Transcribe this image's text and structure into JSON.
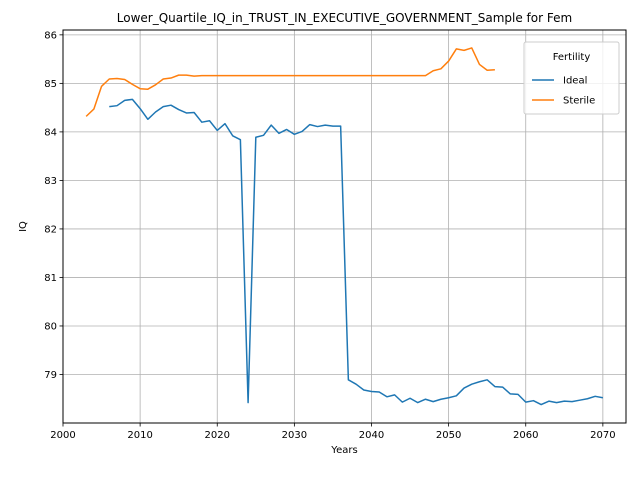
{
  "chart_data": {
    "type": "line",
    "title": "Lower_Quartile_IQ_in_TRUST_IN_EXECUTIVE_GOVERNMENT_Sample for Fem",
    "xlabel": "Years",
    "ylabel": "IQ",
    "xlim": [
      2000,
      2073
    ],
    "ylim": [
      78.0,
      86.1
    ],
    "xticks": [
      2000,
      2010,
      2020,
      2030,
      2040,
      2050,
      2060,
      2070
    ],
    "yticks": [
      79,
      80,
      81,
      82,
      83,
      84,
      85,
      86
    ],
    "grid": true,
    "legend": {
      "title": "Fertility",
      "placement": "top-right"
    },
    "series": [
      {
        "name": "Ideal",
        "color": "#1f77b4",
        "x": [
          2006,
          2007,
          2008,
          2009,
          2010,
          2011,
          2012,
          2013,
          2014,
          2015,
          2016,
          2017,
          2018,
          2019,
          2020,
          2021,
          2022,
          2023,
          2024,
          2025,
          2026,
          2027,
          2028,
          2029,
          2030,
          2031,
          2032,
          2033,
          2034,
          2035,
          2036,
          2037,
          2038,
          2039,
          2040,
          2041,
          2042,
          2043,
          2044,
          2045,
          2046,
          2047,
          2048,
          2049,
          2050,
          2051,
          2052,
          2053,
          2054,
          2055,
          2056,
          2057,
          2058,
          2059,
          2060,
          2061,
          2062,
          2063,
          2064,
          2065,
          2066,
          2067,
          2068,
          2069,
          2070
        ],
        "y": [
          84.52,
          84.54,
          84.65,
          84.67,
          84.48,
          84.26,
          84.41,
          84.52,
          84.55,
          84.46,
          84.39,
          84.4,
          84.2,
          84.23,
          84.03,
          84.17,
          83.92,
          83.84,
          78.42,
          83.89,
          83.93,
          84.14,
          83.97,
          84.05,
          83.95,
          84.01,
          84.15,
          84.11,
          84.14,
          84.12,
          84.12,
          78.89,
          78.8,
          78.68,
          78.65,
          78.64,
          78.54,
          78.58,
          78.43,
          78.51,
          78.42,
          78.49,
          78.44,
          78.49,
          78.52,
          78.56,
          78.72,
          78.8,
          78.85,
          78.89,
          78.75,
          78.74,
          78.6,
          78.59,
          78.43,
          78.46,
          78.38,
          78.45,
          78.42,
          78.45,
          78.44,
          78.47,
          78.5,
          78.55,
          78.52
        ]
      },
      {
        "name": "Sterile",
        "color": "#ff7f0e",
        "x": [
          2003,
          2004,
          2005,
          2006,
          2007,
          2008,
          2009,
          2010,
          2011,
          2012,
          2013,
          2014,
          2015,
          2016,
          2017,
          2018,
          2019,
          2020,
          2021,
          2022,
          2023,
          2024,
          2025,
          2026,
          2027,
          2028,
          2029,
          2030,
          2031,
          2032,
          2033,
          2034,
          2035,
          2036,
          2037,
          2038,
          2039,
          2040,
          2041,
          2042,
          2043,
          2044,
          2045,
          2046,
          2047,
          2048,
          2049,
          2050,
          2051,
          2052,
          2053,
          2054,
          2055,
          2056
        ],
        "y": [
          84.32,
          84.47,
          84.94,
          85.09,
          85.1,
          85.08,
          84.98,
          84.89,
          84.88,
          84.97,
          85.09,
          85.11,
          85.17,
          85.17,
          85.15,
          85.16,
          85.16,
          85.16,
          85.16,
          85.16,
          85.16,
          85.16,
          85.16,
          85.16,
          85.16,
          85.16,
          85.16,
          85.16,
          85.16,
          85.16,
          85.16,
          85.16,
          85.16,
          85.16,
          85.16,
          85.16,
          85.16,
          85.16,
          85.16,
          85.16,
          85.16,
          85.16,
          85.16,
          85.16,
          85.16,
          85.26,
          85.3,
          85.46,
          85.71,
          85.68,
          85.73,
          85.39,
          85.27,
          85.28
        ]
      }
    ]
  }
}
